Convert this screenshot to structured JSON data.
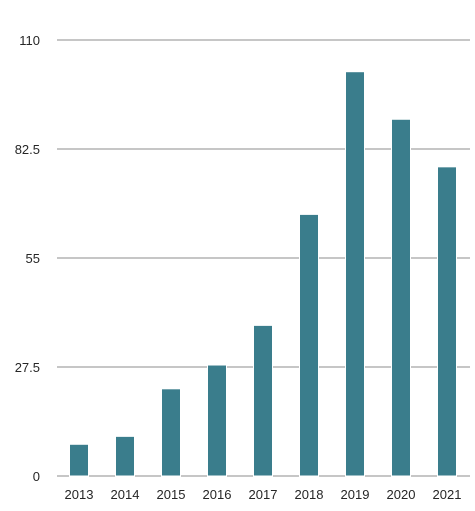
{
  "chart_data": {
    "type": "bar",
    "title": "",
    "xlabel": "",
    "ylabel": "",
    "categories": [
      "2013",
      "2014",
      "2015",
      "2016",
      "2017",
      "2018",
      "2019",
      "2020",
      "2021"
    ],
    "values": [
      8,
      10,
      22,
      28,
      38,
      66,
      102,
      90,
      78
    ],
    "ylim": [
      0,
      110
    ],
    "yticks": [
      0,
      27.5,
      55,
      82.5,
      110
    ],
    "ytick_labels": [
      "0",
      "27.5",
      "55",
      "82.5",
      "110"
    ],
    "grid": true,
    "legend": "none",
    "bar_color": "#3a7d8c"
  }
}
